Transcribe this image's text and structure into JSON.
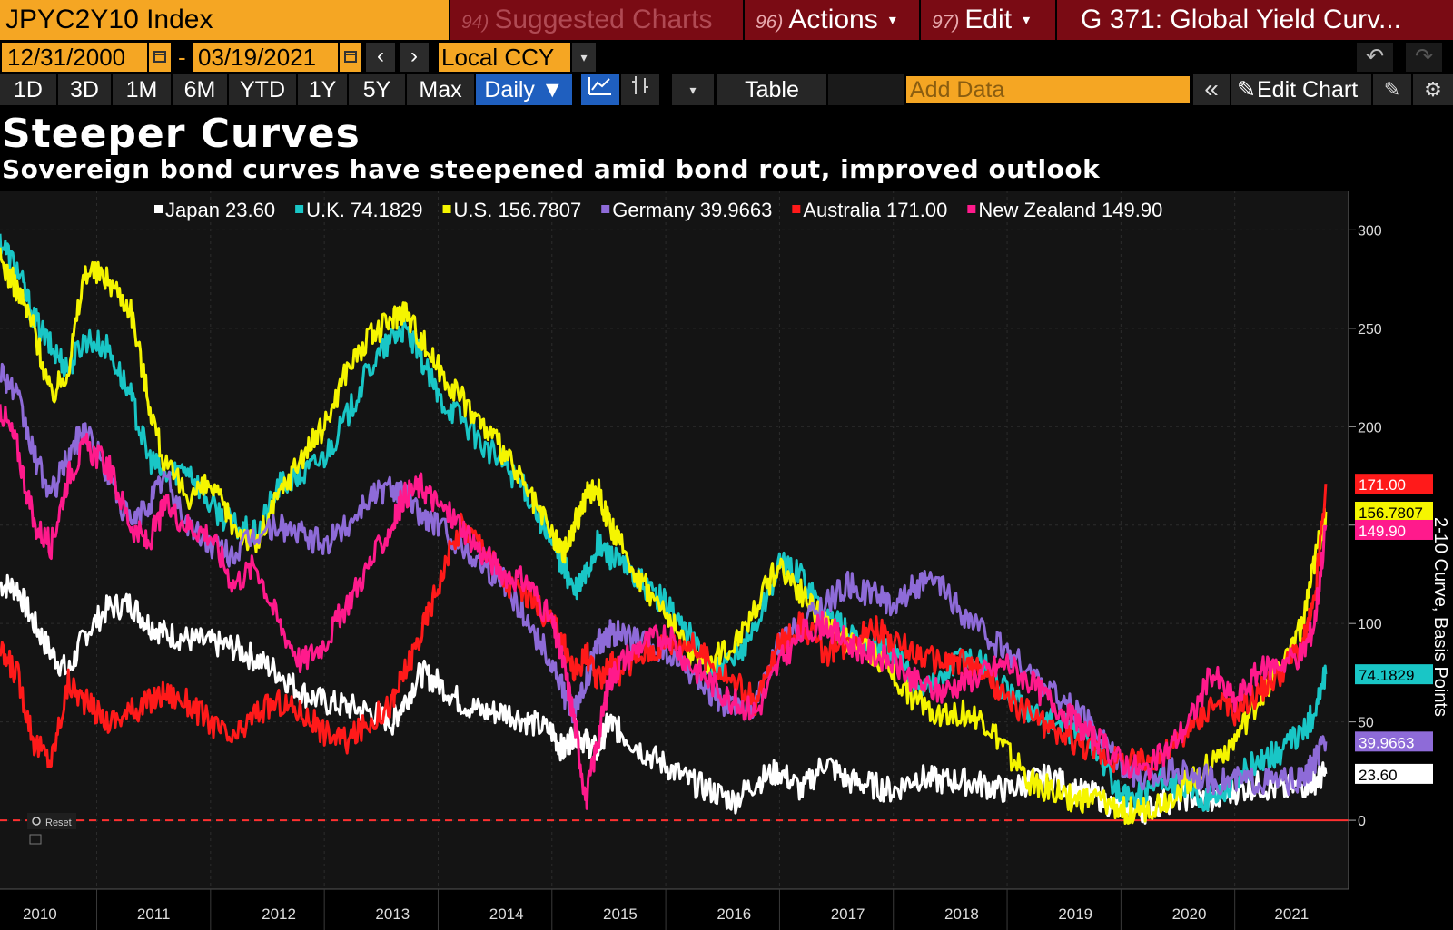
{
  "toolbar": {
    "ticker": "JPYC2Y10 Index",
    "suggested": {
      "num": "94)",
      "label": "Suggested Charts"
    },
    "actions": {
      "num": "96)",
      "label": "Actions",
      "caret": "▾"
    },
    "edit": {
      "num": "97)",
      "label": "Edit",
      "caret": "▾"
    },
    "chart_title": "G 371: Global Yield Curv..."
  },
  "range": {
    "start": "12/31/2000",
    "end": "03/19/2021",
    "separator": "-",
    "currency": "Local CCY",
    "prev": "‹",
    "next": "›",
    "dropdown": "▾",
    "undo": "↶",
    "redo": "↷"
  },
  "periods": [
    "1D",
    "3D",
    "1M",
    "6M",
    "YTD",
    "1Y",
    "5Y",
    "Max"
  ],
  "frequency": "Daily ▼",
  "tools": {
    "table": "Table",
    "add_data_placeholder": "Add Data",
    "collapse": "«",
    "edit_chart": "Edit Chart",
    "annotate": "✎",
    "settings": "⚙",
    "chart_type_caret": "▾"
  },
  "chart_data": {
    "type": "line",
    "title": "Steeper Curves",
    "subtitle": "Sovereign bond curves have steepened amid bond rout, improved outlook",
    "ylabel": "2-10 Curve, Basis Points",
    "ylim": [
      -35,
      320
    ],
    "yticks": [
      0,
      50,
      100,
      150,
      200,
      250,
      300
    ],
    "ytick_labels": [
      "0",
      "50",
      "100",
      "150",
      "200",
      "250",
      "300"
    ],
    "xlim": [
      2009.55,
      2021.4
    ],
    "xticks": [
      {
        "label": "2010",
        "pos": 2009.9
      },
      {
        "label": "2011",
        "pos": 2010.9
      },
      {
        "label": "2012",
        "pos": 2012.0
      },
      {
        "label": "2013",
        "pos": 2013.0
      },
      {
        "label": "2014",
        "pos": 2014.0
      },
      {
        "label": "2015",
        "pos": 2015.0
      },
      {
        "label": "2016",
        "pos": 2016.0
      },
      {
        "label": "2017",
        "pos": 2017.0
      },
      {
        "label": "2018",
        "pos": 2018.0
      },
      {
        "label": "2019",
        "pos": 2019.0
      },
      {
        "label": "2020",
        "pos": 2020.0
      },
      {
        "label": "2021",
        "pos": 2020.9
      }
    ],
    "gridlines_x": [
      2010.4,
      2011.4,
      2012.4,
      2013.4,
      2014.4,
      2015.4,
      2016.4,
      2017.4,
      2018.4,
      2019.4,
      2020.4
    ],
    "zero_line": {
      "value": 0,
      "color": "#ff3030"
    },
    "legend_position": "top",
    "reset_label": "Reset",
    "series": [
      {
        "name": "Japan",
        "last": "23.60",
        "color": "#ffffff",
        "label_text_color": "#000000",
        "x": [
          2009.55,
          2009.7,
          2009.85,
          2010.0,
          2010.15,
          2010.3,
          2010.5,
          2010.7,
          2010.85,
          2011.0,
          2011.2,
          2011.4,
          2011.6,
          2011.8,
          2012.0,
          2012.2,
          2012.4,
          2012.6,
          2012.8,
          2013.0,
          2013.1,
          2013.25,
          2013.4,
          2013.6,
          2013.8,
          2014.0,
          2014.2,
          2014.4,
          2014.5,
          2014.6,
          2014.7,
          2014.8,
          2014.9,
          2015.0,
          2015.2,
          2015.4,
          2015.6,
          2015.8,
          2016.0,
          2016.2,
          2016.4,
          2016.6,
          2016.8,
          2017.0,
          2017.2,
          2017.4,
          2017.6,
          2017.8,
          2018.0,
          2018.2,
          2018.4,
          2018.6,
          2018.8,
          2019.0,
          2019.2,
          2019.4,
          2019.6,
          2019.8,
          2020.0,
          2020.2,
          2020.4,
          2020.6,
          2020.8,
          2021.0,
          2021.1,
          2021.2
        ],
        "y": [
          120,
          118,
          100,
          85,
          75,
          95,
          108,
          110,
          100,
          95,
          92,
          90,
          88,
          82,
          75,
          65,
          60,
          58,
          55,
          50,
          60,
          75,
          70,
          60,
          55,
          55,
          50,
          45,
          35,
          45,
          40,
          35,
          50,
          45,
          35,
          28,
          20,
          15,
          10,
          20,
          25,
          15,
          30,
          20,
          18,
          15,
          22,
          20,
          20,
          18,
          15,
          20,
          22,
          15,
          12,
          5,
          5,
          10,
          12,
          10,
          15,
          18,
          15,
          18,
          20,
          23.6
        ]
      },
      {
        "name": "U.K.",
        "last": "74.1829",
        "color": "#19c6c6",
        "label_text_color": "#000000",
        "x": [
          2009.55,
          2009.7,
          2009.85,
          2010.0,
          2010.15,
          2010.3,
          2010.5,
          2010.7,
          2010.85,
          2011.0,
          2011.2,
          2011.4,
          2011.6,
          2011.8,
          2012.0,
          2012.2,
          2012.4,
          2012.6,
          2012.8,
          2013.0,
          2013.1,
          2013.25,
          2013.4,
          2013.6,
          2013.8,
          2014.0,
          2014.2,
          2014.4,
          2014.5,
          2014.6,
          2014.7,
          2014.8,
          2014.9,
          2015.0,
          2015.2,
          2015.4,
          2015.6,
          2015.8,
          2016.0,
          2016.2,
          2016.4,
          2016.6,
          2016.8,
          2017.0,
          2017.2,
          2017.4,
          2017.6,
          2017.8,
          2018.0,
          2018.2,
          2018.4,
          2018.6,
          2018.8,
          2019.0,
          2019.2,
          2019.4,
          2019.6,
          2019.8,
          2020.0,
          2020.2,
          2020.4,
          2020.6,
          2020.8,
          2021.0,
          2021.1,
          2021.2
        ],
        "y": [
          295,
          280,
          255,
          240,
          230,
          245,
          240,
          215,
          185,
          175,
          180,
          160,
          150,
          145,
          170,
          175,
          185,
          205,
          230,
          245,
          250,
          235,
          215,
          205,
          190,
          180,
          165,
          140,
          130,
          115,
          125,
          140,
          135,
          130,
          120,
          110,
          95,
          75,
          80,
          100,
          130,
          125,
          105,
          95,
          90,
          85,
          70,
          70,
          85,
          80,
          65,
          55,
          50,
          45,
          35,
          10,
          15,
          20,
          15,
          10,
          20,
          30,
          35,
          45,
          55,
          74.2
        ]
      },
      {
        "name": "U.S.",
        "last": "156.7807",
        "color": "#f5f500",
        "label_text_color": "#000000",
        "x": [
          2009.55,
          2009.7,
          2009.85,
          2010.0,
          2010.15,
          2010.3,
          2010.5,
          2010.7,
          2010.85,
          2011.0,
          2011.2,
          2011.4,
          2011.6,
          2011.8,
          2012.0,
          2012.2,
          2012.4,
          2012.6,
          2012.8,
          2013.0,
          2013.1,
          2013.25,
          2013.4,
          2013.6,
          2013.8,
          2014.0,
          2014.2,
          2014.4,
          2014.5,
          2014.6,
          2014.7,
          2014.8,
          2014.9,
          2015.0,
          2015.2,
          2015.4,
          2015.6,
          2015.8,
          2016.0,
          2016.2,
          2016.4,
          2016.6,
          2016.8,
          2017.0,
          2017.2,
          2017.4,
          2017.6,
          2017.8,
          2018.0,
          2018.2,
          2018.4,
          2018.6,
          2018.8,
          2019.0,
          2019.2,
          2019.4,
          2019.6,
          2019.8,
          2020.0,
          2020.2,
          2020.4,
          2020.6,
          2020.8,
          2021.0,
          2021.1,
          2021.2
        ],
        "y": [
          285,
          270,
          250,
          215,
          230,
          280,
          275,
          260,
          215,
          180,
          165,
          170,
          150,
          140,
          165,
          185,
          200,
          230,
          245,
          255,
          260,
          245,
          230,
          215,
          200,
          185,
          165,
          145,
          135,
          150,
          165,
          170,
          150,
          140,
          120,
          105,
          85,
          80,
          90,
          110,
          130,
          115,
          100,
          90,
          85,
          75,
          60,
          55,
          55,
          50,
          35,
          20,
          15,
          10,
          10,
          5,
          5,
          10,
          20,
          30,
          40,
          60,
          80,
          100,
          130,
          156.8
        ]
      },
      {
        "name": "Germany",
        "last": "39.9663",
        "color": "#8e6bd8",
        "label_text_color": "#ffffff",
        "x": [
          2009.55,
          2009.7,
          2009.85,
          2010.0,
          2010.15,
          2010.3,
          2010.5,
          2010.7,
          2010.85,
          2011.0,
          2011.2,
          2011.4,
          2011.6,
          2011.8,
          2012.0,
          2012.2,
          2012.4,
          2012.6,
          2012.8,
          2013.0,
          2013.1,
          2013.25,
          2013.4,
          2013.6,
          2013.8,
          2014.0,
          2014.2,
          2014.4,
          2014.5,
          2014.6,
          2014.7,
          2014.8,
          2014.9,
          2015.0,
          2015.2,
          2015.4,
          2015.6,
          2015.8,
          2016.0,
          2016.2,
          2016.4,
          2016.6,
          2016.8,
          2017.0,
          2017.2,
          2017.4,
          2017.6,
          2017.8,
          2018.0,
          2018.2,
          2018.4,
          2018.6,
          2018.8,
          2019.0,
          2019.2,
          2019.4,
          2019.6,
          2019.8,
          2020.0,
          2020.2,
          2020.4,
          2020.6,
          2020.8,
          2021.0,
          2021.1,
          2021.2
        ],
        "y": [
          230,
          215,
          185,
          165,
          185,
          200,
          175,
          150,
          160,
          175,
          150,
          140,
          135,
          145,
          150,
          145,
          140,
          150,
          165,
          170,
          165,
          155,
          150,
          140,
          130,
          120,
          100,
          80,
          65,
          55,
          70,
          90,
          95,
          95,
          90,
          85,
          75,
          65,
          55,
          60,
          90,
          100,
          110,
          120,
          115,
          110,
          120,
          120,
          105,
          95,
          85,
          75,
          65,
          55,
          45,
          30,
          20,
          25,
          25,
          20,
          20,
          20,
          20,
          20,
          30,
          40.0
        ]
      },
      {
        "name": "Australia",
        "last": "171.00",
        "color": "#ff1a1a",
        "label_text_color": "#ffffff",
        "x": [
          2009.55,
          2009.7,
          2009.85,
          2010.0,
          2010.15,
          2010.3,
          2010.5,
          2010.7,
          2010.85,
          2011.0,
          2011.2,
          2011.4,
          2011.6,
          2011.8,
          2012.0,
          2012.2,
          2012.4,
          2012.6,
          2012.8,
          2013.0,
          2013.1,
          2013.25,
          2013.4,
          2013.6,
          2013.8,
          2014.0,
          2014.2,
          2014.4,
          2014.5,
          2014.6,
          2014.7,
          2014.8,
          2014.9,
          2015.0,
          2015.2,
          2015.4,
          2015.6,
          2015.8,
          2016.0,
          2016.2,
          2016.4,
          2016.6,
          2016.8,
          2017.0,
          2017.2,
          2017.4,
          2017.6,
          2017.8,
          2018.0,
          2018.2,
          2018.4,
          2018.6,
          2018.8,
          2019.0,
          2019.2,
          2019.4,
          2019.6,
          2019.8,
          2020.0,
          2020.2,
          2020.4,
          2020.6,
          2020.8,
          2021.0,
          2021.1,
          2021.2
        ],
        "y": [
          85,
          75,
          40,
          30,
          70,
          60,
          50,
          55,
          60,
          65,
          60,
          50,
          40,
          55,
          60,
          55,
          45,
          40,
          50,
          60,
          75,
          95,
          120,
          150,
          140,
          120,
          115,
          100,
          90,
          75,
          85,
          70,
          80,
          75,
          85,
          90,
          90,
          80,
          70,
          60,
          90,
          100,
          85,
          90,
          100,
          90,
          85,
          80,
          80,
          75,
          60,
          55,
          45,
          40,
          35,
          30,
          30,
          35,
          45,
          60,
          55,
          65,
          75,
          90,
          110,
          171.0
        ]
      },
      {
        "name": "New Zealand",
        "last": "149.90",
        "color": "#ff1a8c",
        "label_text_color": "#ffffff",
        "x": [
          2009.55,
          2009.7,
          2009.85,
          2010.0,
          2010.15,
          2010.3,
          2010.5,
          2010.7,
          2010.85,
          2011.0,
          2011.2,
          2011.4,
          2011.6,
          2011.8,
          2012.0,
          2012.2,
          2012.4,
          2012.6,
          2012.8,
          2013.0,
          2013.1,
          2013.25,
          2013.4,
          2013.6,
          2013.8,
          2014.0,
          2014.2,
          2014.4,
          2014.5,
          2014.6,
          2014.7,
          2014.8,
          2014.9,
          2015.0,
          2015.2,
          2015.4,
          2015.6,
          2015.8,
          2016.0,
          2016.2,
          2016.4,
          2016.6,
          2016.8,
          2017.0,
          2017.2,
          2017.4,
          2017.6,
          2017.8,
          2018.0,
          2018.2,
          2018.4,
          2018.6,
          2018.8,
          2019.0,
          2019.2,
          2019.4,
          2019.6,
          2019.8,
          2020.0,
          2020.2,
          2020.4,
          2020.6,
          2020.8,
          2021.0,
          2021.1,
          2021.2
        ],
        "y": [
          210,
          190,
          150,
          140,
          175,
          190,
          180,
          150,
          140,
          160,
          150,
          145,
          120,
          130,
          100,
          80,
          90,
          110,
          130,
          150,
          165,
          170,
          160,
          150,
          135,
          125,
          120,
          100,
          80,
          50,
          10,
          40,
          70,
          80,
          90,
          95,
          80,
          70,
          60,
          55,
          80,
          95,
          100,
          90,
          85,
          80,
          70,
          65,
          70,
          75,
          80,
          70,
          60,
          50,
          40,
          30,
          25,
          35,
          50,
          75,
          60,
          75,
          80,
          85,
          100,
          149.9
        ]
      }
    ]
  }
}
